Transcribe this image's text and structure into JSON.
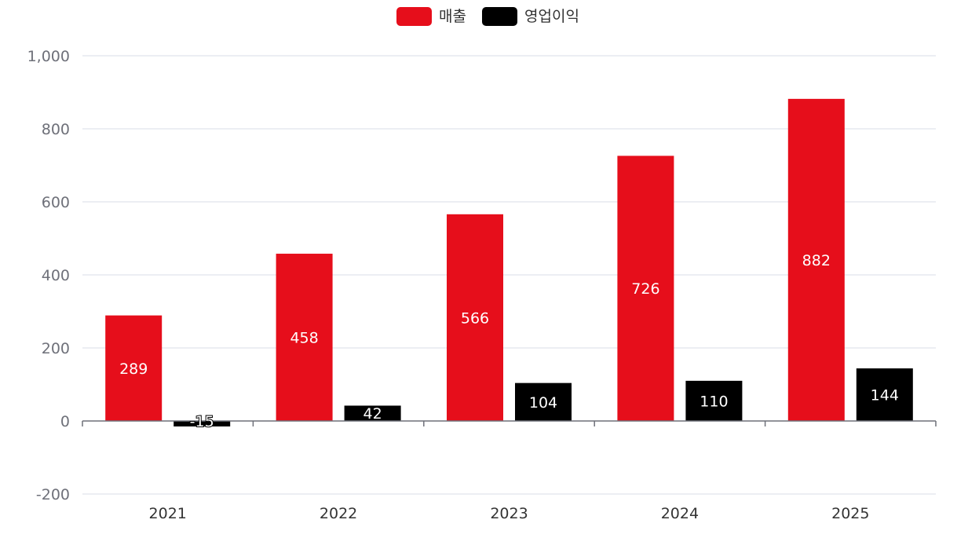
{
  "chart_data": {
    "type": "bar",
    "categories": [
      "2021",
      "2022",
      "2023",
      "2024",
      "2025"
    ],
    "series": [
      {
        "name": "매출",
        "color": "#e60e1b",
        "values": [
          289,
          458,
          566,
          726,
          882
        ]
      },
      {
        "name": "영업이익",
        "color": "#000000",
        "values": [
          -15,
          42,
          104,
          110,
          144
        ]
      }
    ],
    "ylim": [
      -200,
      1000
    ],
    "yticks": [
      -200,
      0,
      200,
      400,
      600,
      800,
      1000
    ],
    "ytick_labels": [
      "-200",
      "0",
      "200",
      "400",
      "600",
      "800",
      "1,000"
    ],
    "grid": true,
    "legend_position": "top-center",
    "data_labels": true,
    "title": "",
    "xlabel": "",
    "ylabel": ""
  },
  "colors": {
    "grid": "#e0e3ec",
    "axis": "#6e7079"
  }
}
